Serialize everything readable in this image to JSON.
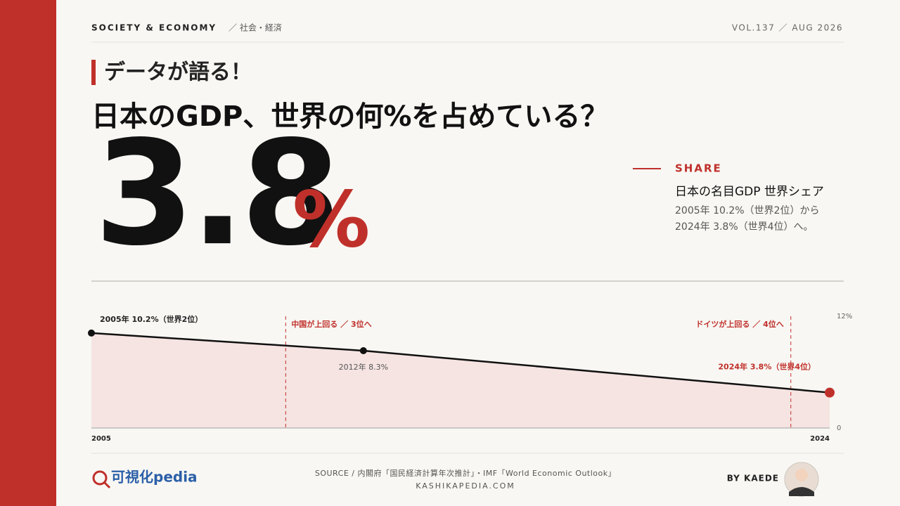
{
  "header": {
    "section": "SOCIETY & ECONOMY",
    "section_ja": "／ 社会・経済",
    "issue": "VOL.137 ／ AUG 2026"
  },
  "kicker": "データが語る！",
  "title": "日本のGDP、世界の何%を占めている？",
  "big_value": "3.8",
  "big_unit": "%",
  "share": {
    "label": "SHARE",
    "heading": "日本の名目GDP 世界シェア",
    "lines": [
      "2005年 10.2%（世界2位）から",
      "2024年 3.8%（世界4位）へ。"
    ]
  },
  "chart_data": {
    "type": "area",
    "x": [
      2005,
      2012,
      2024
    ],
    "values": [
      10.2,
      8.3,
      3.8
    ],
    "value_labels": [
      "2005年 10.2%（世界2位）",
      "2012年 8.3%",
      "2024年 3.8%（世界4位）"
    ],
    "xlim": [
      2005,
      2024
    ],
    "xticks": [
      2005,
      2024
    ],
    "ylim": [
      0,
      12
    ],
    "yticks": [
      0,
      {
        "value": 12,
        "label": "12%"
      }
    ],
    "line_color": "#111111",
    "fill_color": "#f5e4e2",
    "highlight_color": "#c0302b",
    "annotations": [
      {
        "x": 2010,
        "label": "中国が上回る ／ 3位へ"
      },
      {
        "x": 2023,
        "label": "ドイツが上回る ／ 4位へ"
      }
    ]
  },
  "footer": {
    "logo": "可視化pedia",
    "source": "SOURCE / 内閣府「国民経済計算年次推計」・IMF「World Economic Outlook」",
    "site": "KASHIKAPEDIA.COM",
    "byline": "BY KAEDE"
  }
}
